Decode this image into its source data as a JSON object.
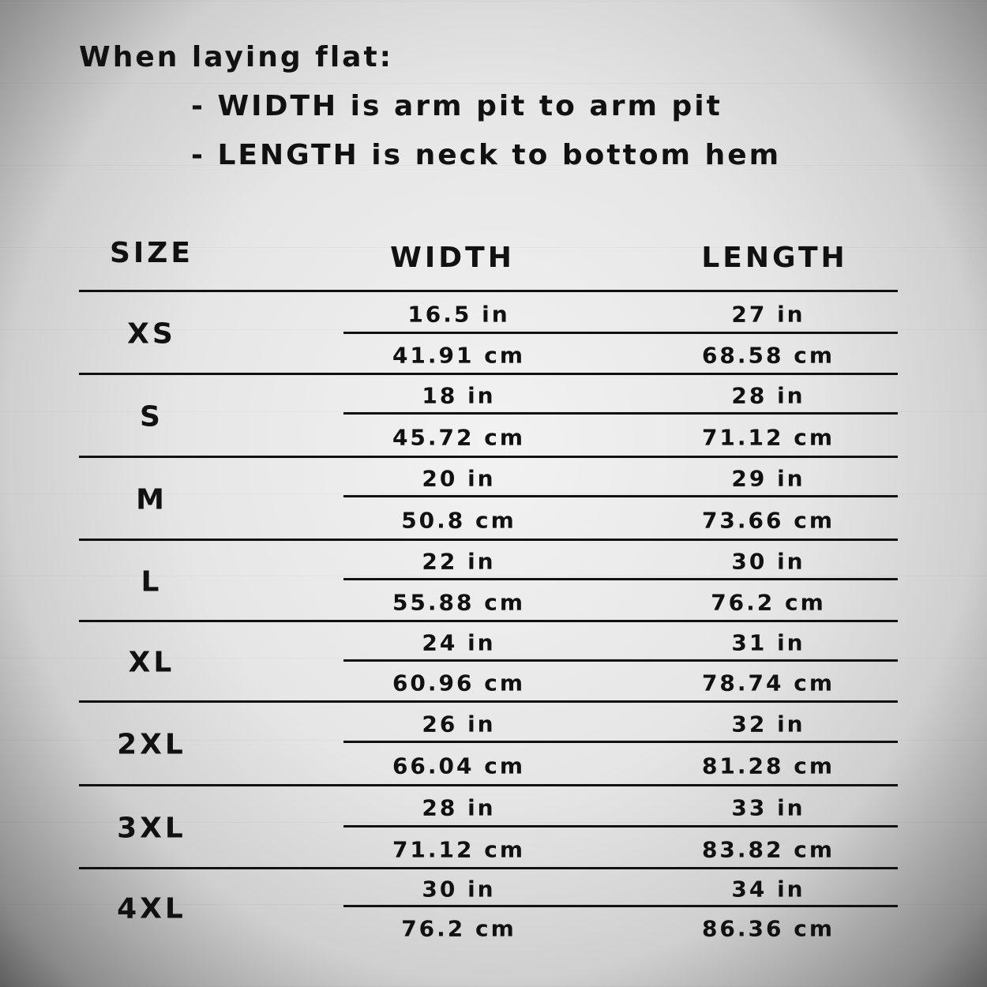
{
  "intro": {
    "line1": "When laying flat:",
    "line2": "- WIDTH is arm pit to arm pit",
    "line3": "- LENGTH is neck to bottom hem"
  },
  "table": {
    "headers": {
      "size": "SIZE",
      "width": "WIDTH",
      "length": "LENGTH"
    },
    "rows": [
      {
        "size": "XS",
        "width_in": "16.5 in",
        "width_cm": "41.91 cm",
        "length_in": "27 in",
        "length_cm": "68.58 cm"
      },
      {
        "size": "S",
        "width_in": "18 in",
        "width_cm": "45.72 cm",
        "length_in": "28 in",
        "length_cm": "71.12 cm"
      },
      {
        "size": "M",
        "width_in": "20 in",
        "width_cm": "50.8 cm",
        "length_in": "29 in",
        "length_cm": "73.66 cm"
      },
      {
        "size": "L",
        "width_in": "22 in",
        "width_cm": "55.88 cm",
        "length_in": "30 in",
        "length_cm": "76.2 cm"
      },
      {
        "size": "XL",
        "width_in": "24 in",
        "width_cm": "60.96 cm",
        "length_in": "31 in",
        "length_cm": "78.74 cm"
      },
      {
        "size": "2XL",
        "width_in": "26 in",
        "width_cm": "66.04 cm",
        "length_in": "32 in",
        "length_cm": "81.28 cm"
      },
      {
        "size": "3XL",
        "width_in": "28 in",
        "width_cm": "71.12 cm",
        "length_in": "33 in",
        "length_cm": "83.82 cm"
      },
      {
        "size": "4XL",
        "width_in": "30 in",
        "width_cm": "76.2 cm",
        "length_in": "34 in",
        "length_cm": "86.36 cm"
      }
    ]
  }
}
